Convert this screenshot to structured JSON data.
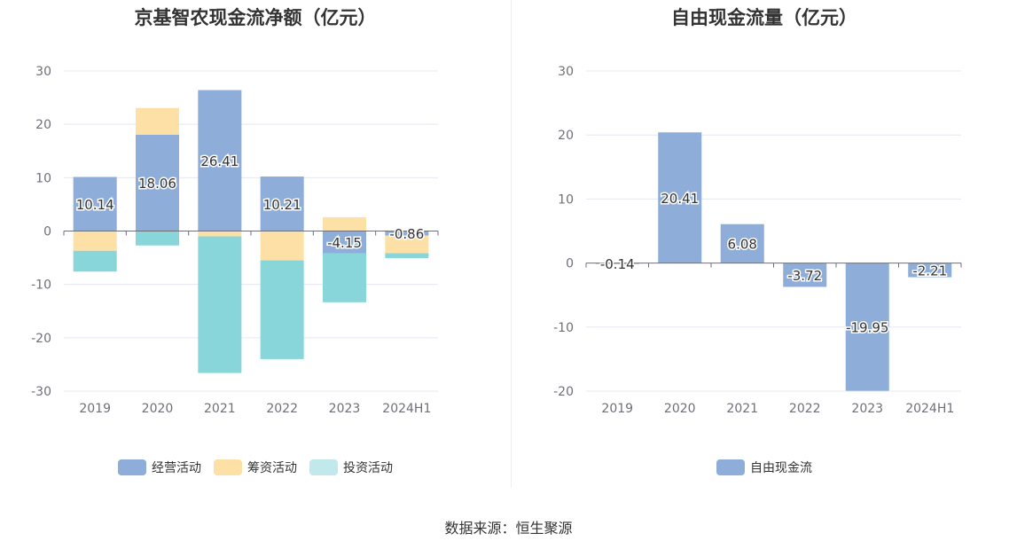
{
  "source_text": "数据来源：恒生聚源",
  "chart_data": [
    {
      "type": "bar",
      "stacked": true,
      "title": "京基智农现金流净额（亿元）",
      "categories": [
        "2019",
        "2020",
        "2021",
        "2022",
        "2023",
        "2024H1"
      ],
      "ylim": [
        -30,
        30
      ],
      "yticks": [
        30,
        20,
        10,
        0,
        -10,
        -20,
        -30
      ],
      "grid": true,
      "legend_position": "bottom",
      "series": [
        {
          "name": "经营活动",
          "color": "#8eadd9",
          "values": [
            10.14,
            18.06,
            26.41,
            10.21,
            -4.15,
            -0.86
          ],
          "labeled": true
        },
        {
          "name": "筹资活动",
          "color": "#fde0a6",
          "values": [
            -3.7,
            5.0,
            -1.0,
            -5.5,
            2.6,
            -3.3
          ],
          "labeled": false
        },
        {
          "name": "投资活动",
          "color": "#88d6da",
          "values": [
            -3.9,
            -2.7,
            -25.6,
            -18.5,
            -9.2,
            -0.9
          ],
          "labeled": false
        }
      ],
      "data_labels": [
        "10.14",
        "18.06",
        "26.41",
        "10.21",
        "-4.15",
        "-0.86"
      ]
    },
    {
      "type": "bar",
      "title": "自由现金流量（亿元）",
      "categories": [
        "2019",
        "2020",
        "2021",
        "2022",
        "2023",
        "2024H1"
      ],
      "ylim": [
        -20,
        30
      ],
      "yticks": [
        30,
        20,
        10,
        0,
        -10,
        -20
      ],
      "grid": true,
      "legend_position": "bottom",
      "series": [
        {
          "name": "自由现金流",
          "color": "#8eadd9",
          "values": [
            -0.14,
            20.41,
            6.08,
            -3.72,
            -19.95,
            -2.21
          ],
          "labeled": true
        }
      ],
      "data_labels": [
        "-0.14",
        "20.41",
        "6.08",
        "-3.72",
        "-19.95",
        "-2.21"
      ]
    }
  ]
}
